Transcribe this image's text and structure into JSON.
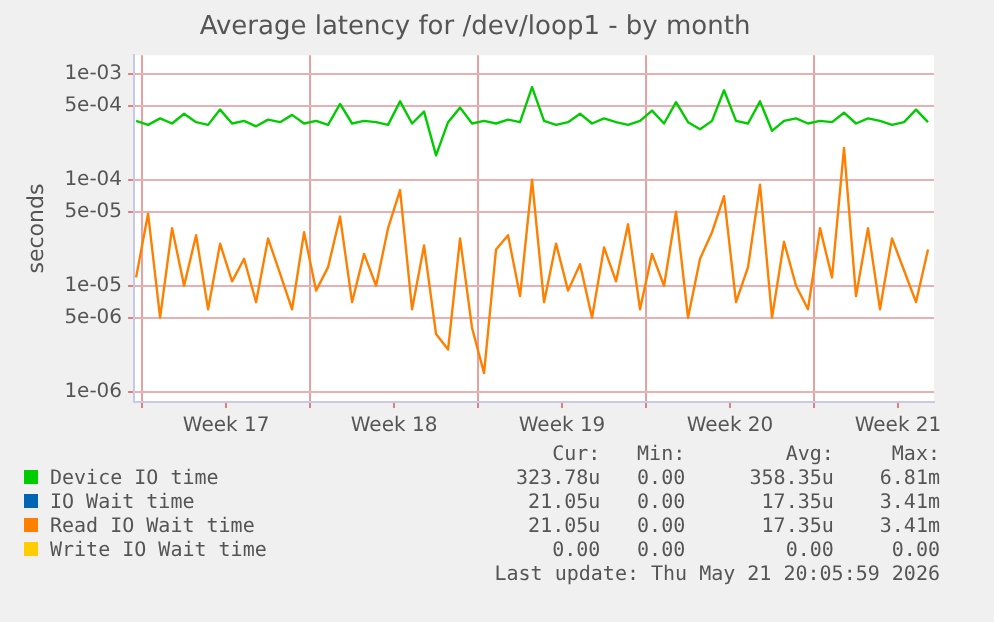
{
  "chart_data": {
    "type": "line",
    "title": "Average latency for /dev/loop1 - by month",
    "ylabel": "seconds",
    "log": "y",
    "grid": true,
    "legend": "bottom",
    "marker": "none",
    "line_style": "solid",
    "xlim": [
      "2026-04-19T16:00",
      "2026-05-23T00:00"
    ],
    "xticks": [
      {
        "value": "2026-04-20",
        "label": null
      },
      {
        "value": "2026-04-23T12:00",
        "label": "Week 17"
      },
      {
        "value": "2026-04-27",
        "label": null
      },
      {
        "value": "2026-04-30T12:00",
        "label": "Week 18"
      },
      {
        "value": "2026-05-04",
        "label": null
      },
      {
        "value": "2026-05-07T12:00",
        "label": "Week 19"
      },
      {
        "value": "2026-05-11",
        "label": null
      },
      {
        "value": "2026-05-14T12:00",
        "label": "Week 20"
      },
      {
        "value": "2026-05-18",
        "label": null
      },
      {
        "value": "2026-05-21T12:00",
        "label": "Week 21"
      }
    ],
    "ylim": [
      8e-07,
      0.0015
    ],
    "yticks": [
      {
        "value": 1e-06,
        "label": "1e-06"
      },
      {
        "value": 5e-06,
        "label": "5e-06"
      },
      {
        "value": 1e-05,
        "label": "1e-05"
      },
      {
        "value": 5e-05,
        "label": "5e-05"
      },
      {
        "value": 0.0001,
        "label": "1e-04"
      },
      {
        "value": 0.0005,
        "label": "5e-04"
      },
      {
        "value": 0.001,
        "label": "1e-03"
      }
    ],
    "x": [
      "2026-04-19T18:00",
      "2026-04-20T06:00",
      "2026-04-20T18:00",
      "2026-04-21T06:00",
      "2026-04-21T18:00",
      "2026-04-22T06:00",
      "2026-04-22T18:00",
      "2026-04-23T06:00",
      "2026-04-23T18:00",
      "2026-04-24T06:00",
      "2026-04-24T18:00",
      "2026-04-25T06:00",
      "2026-04-25T18:00",
      "2026-04-26T06:00",
      "2026-04-26T18:00",
      "2026-04-27T06:00",
      "2026-04-27T18:00",
      "2026-04-28T06:00",
      "2026-04-28T18:00",
      "2026-04-29T06:00",
      "2026-04-29T18:00",
      "2026-04-30T06:00",
      "2026-04-30T18:00",
      "2026-05-01T06:00",
      "2026-05-01T18:00",
      "2026-05-02T06:00",
      "2026-05-02T18:00",
      "2026-05-03T06:00",
      "2026-05-03T18:00",
      "2026-05-04T06:00",
      "2026-05-04T18:00",
      "2026-05-05T06:00",
      "2026-05-05T18:00",
      "2026-05-06T06:00",
      "2026-05-06T18:00",
      "2026-05-07T06:00",
      "2026-05-07T18:00",
      "2026-05-08T06:00",
      "2026-05-08T18:00",
      "2026-05-09T06:00",
      "2026-05-09T18:00",
      "2026-05-10T06:00",
      "2026-05-10T18:00",
      "2026-05-11T06:00",
      "2026-05-11T18:00",
      "2026-05-12T06:00",
      "2026-05-12T18:00",
      "2026-05-13T06:00",
      "2026-05-13T18:00",
      "2026-05-14T06:00",
      "2026-05-14T18:00",
      "2026-05-15T06:00",
      "2026-05-15T18:00",
      "2026-05-16T06:00",
      "2026-05-16T18:00",
      "2026-05-17T06:00",
      "2026-05-17T18:00",
      "2026-05-18T06:00",
      "2026-05-18T18:00",
      "2026-05-19T06:00",
      "2026-05-19T18:00",
      "2026-05-20T06:00",
      "2026-05-20T18:00",
      "2026-05-21T06:00",
      "2026-05-21T18:00",
      "2026-05-22T06:00",
      "2026-05-22T18:00"
    ],
    "series": [
      {
        "name": "Device IO time",
        "color": "#00cc00",
        "values": [
          0.00036,
          0.00033,
          0.00038,
          0.00034,
          0.00042,
          0.00035,
          0.00033,
          0.00046,
          0.00034,
          0.00036,
          0.00032,
          0.00037,
          0.00035,
          0.00041,
          0.00034,
          0.00036,
          0.00033,
          0.00052,
          0.00034,
          0.00036,
          0.00035,
          0.00033,
          0.00055,
          0.00034,
          0.00044,
          0.00017,
          0.00035,
          0.00048,
          0.00034,
          0.00036,
          0.00034,
          0.00037,
          0.00035,
          0.00075,
          0.00036,
          0.00033,
          0.00035,
          0.00042,
          0.00034,
          0.00038,
          0.00035,
          0.00033,
          0.00036,
          0.00045,
          0.00034,
          0.00054,
          0.00035,
          0.0003,
          0.00036,
          0.0007,
          0.00036,
          0.00034,
          0.00055,
          0.00029,
          0.00036,
          0.00038,
          0.00034,
          0.00036,
          0.00035,
          0.00043,
          0.00034,
          0.00038,
          0.00036,
          0.00033,
          0.00035,
          0.00046,
          0.00035
        ]
      },
      {
        "name": "IO Wait time",
        "color": "#0066b3",
        "values": [
          null,
          null,
          null,
          null,
          null,
          null,
          null,
          null,
          null,
          null,
          null,
          null,
          null,
          null,
          null,
          null,
          null,
          null,
          null,
          null,
          null,
          null,
          null,
          null,
          null,
          null,
          null,
          null,
          null,
          null,
          null,
          null,
          null,
          null,
          null,
          null,
          null,
          null,
          null,
          null,
          null,
          null,
          null,
          null,
          null,
          null,
          null,
          null,
          null,
          null,
          null,
          null,
          null,
          null,
          null,
          null,
          null,
          null,
          null,
          null,
          null,
          null,
          null,
          null,
          null,
          null,
          null
        ]
      },
      {
        "name": "Read IO Wait time",
        "color": "#ff8000",
        "values": [
          1.2e-05,
          4.8e-05,
          5e-06,
          3.5e-05,
          1e-05,
          3e-05,
          6e-06,
          2.5e-05,
          1.1e-05,
          1.8e-05,
          7e-06,
          2.8e-05,
          1.3e-05,
          6e-06,
          3.2e-05,
          9e-06,
          1.5e-05,
          4.5e-05,
          7e-06,
          2e-05,
          1e-05,
          3.5e-05,
          8e-05,
          6e-06,
          2.4e-05,
          3.5e-06,
          2.5e-06,
          2.8e-05,
          4e-06,
          1.5e-06,
          2.2e-05,
          3e-05,
          8e-06,
          0.0001,
          7e-06,
          2.5e-05,
          9e-06,
          1.6e-05,
          5e-06,
          2.3e-05,
          1.1e-05,
          3.8e-05,
          6e-06,
          2e-05,
          1e-05,
          5e-05,
          5e-06,
          1.8e-05,
          3.2e-05,
          7e-05,
          7e-06,
          1.5e-05,
          9e-05,
          5e-06,
          2.6e-05,
          1e-05,
          6e-06,
          3.5e-05,
          1.2e-05,
          0.0002,
          8e-06,
          3.5e-05,
          6e-06,
          2.8e-05,
          1.4e-05,
          7e-06,
          2.2e-05
        ]
      },
      {
        "name": "Write IO Wait time",
        "color": "#ffcc00",
        "values": [
          null,
          null,
          null,
          null,
          null,
          null,
          null,
          null,
          null,
          null,
          null,
          null,
          null,
          null,
          null,
          null,
          null,
          null,
          null,
          null,
          null,
          null,
          null,
          null,
          null,
          null,
          null,
          null,
          null,
          null,
          null,
          null,
          null,
          null,
          null,
          null,
          null,
          null,
          null,
          null,
          null,
          null,
          null,
          null,
          null,
          null,
          null,
          null,
          null,
          null,
          null,
          null,
          null,
          null,
          null,
          null,
          null,
          null,
          null,
          null,
          null,
          null,
          null,
          null,
          null,
          null,
          null
        ]
      }
    ],
    "annotations": [
      "Cur:",
      "Min:",
      "Avg:",
      "Max:",
      "323.78u",
      "0.00",
      "358.35u",
      "6.81m",
      "21.05u",
      "0.00",
      "17.35u",
      "3.41m",
      "21.05u",
      "0.00",
      "17.35u",
      "3.41m",
      "0.00",
      "0.00",
      "0.00",
      "0.00",
      "Last update: Thu May 21 20:05:59 2026"
    ]
  }
}
